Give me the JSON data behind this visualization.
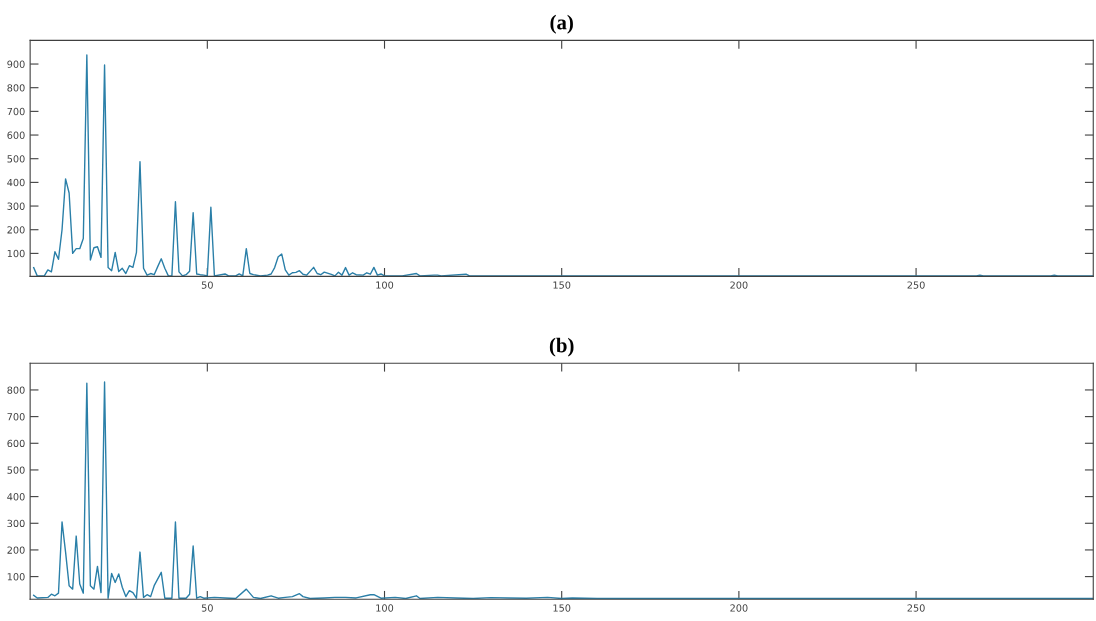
{
  "chart_data": [
    {
      "type": "line",
      "title": "(a)",
      "xlim": [
        0,
        300
      ],
      "xticks": [
        50,
        100,
        150,
        200,
        250
      ],
      "ylim": [
        3,
        1000
      ],
      "yticks": [
        100,
        200,
        300,
        400,
        500,
        600,
        700,
        800,
        900
      ],
      "grid": false,
      "legend": false,
      "series": [
        {
          "color": "#2a7fa8",
          "x": [
            1,
            2,
            4,
            5,
            6,
            7,
            8,
            9,
            10,
            11,
            12,
            13,
            14,
            15,
            16,
            17,
            18,
            19,
            20,
            21,
            22,
            23,
            24,
            25,
            26,
            27,
            28,
            29,
            30,
            31,
            32,
            33,
            34,
            35,
            36,
            37,
            38,
            39,
            40,
            41,
            42,
            43,
            44,
            45,
            46,
            47,
            48,
            49,
            50,
            51,
            52,
            55,
            56,
            58,
            59,
            60,
            61,
            62,
            63,
            65,
            67,
            68,
            69,
            70,
            71,
            72,
            73,
            74,
            75,
            76,
            77,
            78,
            80,
            81,
            82,
            83,
            85,
            86,
            87,
            88,
            89,
            90,
            91,
            92,
            94,
            95,
            96,
            97,
            98,
            99,
            100,
            105,
            109,
            110,
            114,
            115,
            116,
            123,
            124,
            267,
            268,
            269,
            288,
            289,
            290,
            300
          ],
          "values": [
            40,
            5,
            5,
            30,
            22,
            107,
            75,
            200,
            415,
            355,
            100,
            120,
            120,
            163,
            938,
            72,
            124,
            128,
            83,
            896,
            40,
            27,
            104,
            23,
            37,
            15,
            48,
            41,
            104,
            487,
            37,
            8,
            15,
            10,
            44,
            77,
            37,
            5,
            5,
            318,
            22,
            5,
            10,
            25,
            272,
            13,
            10,
            8,
            5,
            295,
            5,
            13,
            5,
            5,
            13,
            5,
            120,
            15,
            10,
            5,
            8,
            13,
            40,
            86,
            97,
            30,
            8,
            18,
            20,
            27,
            12,
            8,
            41,
            15,
            10,
            21,
            11,
            5,
            20,
            8,
            40,
            8,
            18,
            10,
            8,
            18,
            12,
            41,
            8,
            13,
            5,
            5,
            15,
            5,
            8,
            8,
            5,
            12,
            5,
            5,
            8,
            5,
            5,
            8,
            5,
            5
          ]
        }
      ]
    },
    {
      "type": "line",
      "title": "(b)",
      "xlim": [
        0,
        300
      ],
      "xticks": [
        50,
        100,
        150,
        200,
        250
      ],
      "ylim": [
        15,
        900
      ],
      "yticks": [
        100,
        200,
        300,
        400,
        500,
        600,
        700,
        800
      ],
      "grid": false,
      "legend": false,
      "series": [
        {
          "color": "#2a7fa8",
          "x": [
            1,
            2,
            5,
            6,
            7,
            8,
            9,
            10,
            11,
            12,
            13,
            14,
            15,
            16,
            17,
            18,
            19,
            20,
            21,
            22,
            23,
            24,
            25,
            26,
            27,
            28,
            29,
            30,
            31,
            32,
            33,
            34,
            35,
            37,
            38,
            40,
            41,
            42,
            44,
            45,
            46,
            47,
            48,
            49,
            52,
            55,
            58,
            61,
            63,
            65,
            68,
            70,
            72,
            74,
            76,
            77,
            79,
            83,
            86,
            89,
            92,
            96,
            97,
            99,
            103,
            106,
            109,
            110,
            115,
            120,
            125,
            130,
            135,
            140,
            146,
            150,
            153,
            160,
            170,
            300
          ],
          "values": [
            30,
            20,
            22,
            34,
            28,
            38,
            305,
            192,
            66,
            53,
            252,
            72,
            38,
            825,
            66,
            53,
            138,
            40,
            830,
            19,
            112,
            78,
            110,
            60,
            25,
            47,
            40,
            19,
            192,
            22,
            32,
            25,
            66,
            116,
            19,
            19,
            305,
            19,
            19,
            34,
            215,
            19,
            25,
            19,
            22,
            20,
            18,
            53,
            22,
            18,
            28,
            19,
            22,
            25,
            36,
            25,
            18,
            20,
            22,
            22,
            20,
            32,
            32,
            19,
            22,
            18,
            28,
            18,
            22,
            20,
            18,
            21,
            20,
            19,
            22,
            18,
            20,
            18,
            18,
            18
          ]
        }
      ]
    }
  ]
}
